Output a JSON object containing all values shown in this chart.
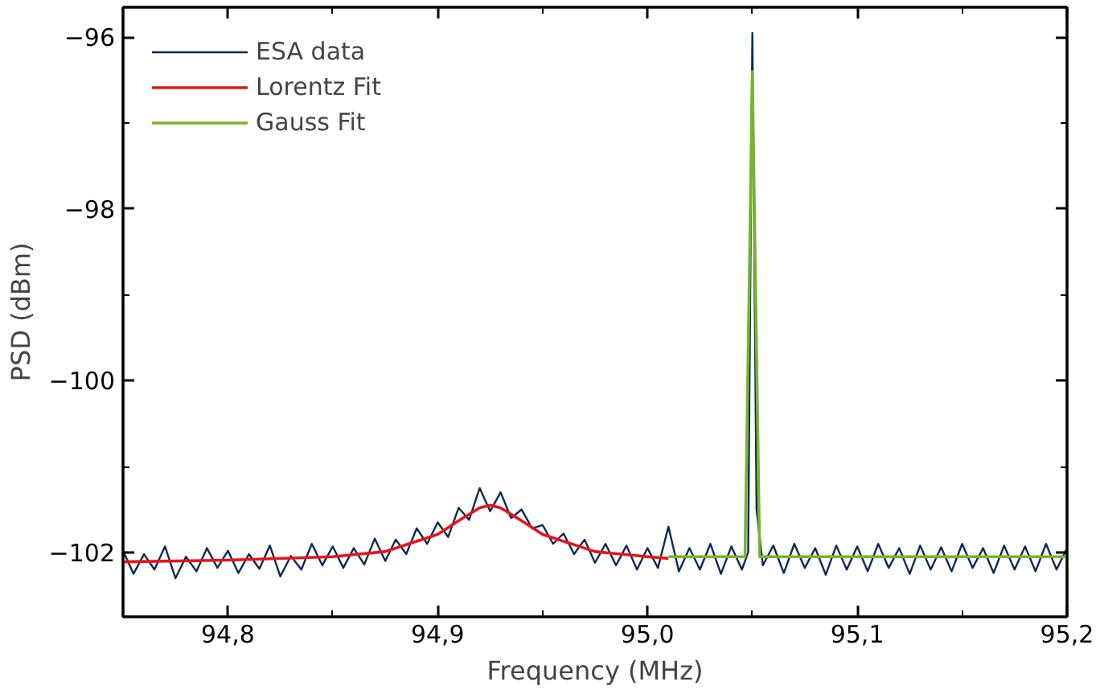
{
  "chart_data": {
    "type": "line",
    "xlabel": "Frequency (MHz)",
    "ylabel": "PSD (dBm)",
    "xlim": [
      94.75,
      95.2
    ],
    "ylim": [
      -102.75,
      -95.65
    ],
    "xticks": [
      {
        "value": 94.8,
        "label": "94,8"
      },
      {
        "value": 94.9,
        "label": "94,9"
      },
      {
        "value": 95.0,
        "label": "95,0"
      },
      {
        "value": 95.1,
        "label": "95,1"
      },
      {
        "value": 95.2,
        "label": "95,2"
      }
    ],
    "yticks": [
      -102,
      -100,
      -98,
      -96
    ],
    "grid": false,
    "legend": "top left",
    "marker": "none",
    "line_style": "solid",
    "series": [
      {
        "name": "ESA data",
        "color": "#0b2a5a",
        "x": [
          94.75,
          94.755,
          94.76,
          94.765,
          94.77,
          94.775,
          94.78,
          94.785,
          94.79,
          94.795,
          94.8,
          94.805,
          94.81,
          94.815,
          94.82,
          94.825,
          94.83,
          94.835,
          94.84,
          94.845,
          94.85,
          94.855,
          94.86,
          94.865,
          94.87,
          94.875,
          94.88,
          94.885,
          94.89,
          94.895,
          94.9,
          94.905,
          94.91,
          94.915,
          94.92,
          94.925,
          94.93,
          94.935,
          94.94,
          94.945,
          94.95,
          94.955,
          94.96,
          94.965,
          94.97,
          94.975,
          94.98,
          94.985,
          94.99,
          94.995,
          95.0,
          95.005,
          95.01,
          95.015,
          95.02,
          95.025,
          95.03,
          95.035,
          95.04,
          95.045,
          95.048,
          95.05,
          95.052,
          95.055,
          95.06,
          95.065,
          95.07,
          95.075,
          95.08,
          95.085,
          95.09,
          95.095,
          95.1,
          95.105,
          95.11,
          95.115,
          95.12,
          95.125,
          95.13,
          95.135,
          95.14,
          95.145,
          95.15,
          95.155,
          95.16,
          95.165,
          95.17,
          95.175,
          95.18,
          95.185,
          95.19,
          95.195,
          95.2
        ],
        "values": [
          -101.98,
          -102.25,
          -102.02,
          -102.2,
          -101.93,
          -102.3,
          -102.05,
          -102.22,
          -101.95,
          -102.18,
          -101.98,
          -102.24,
          -102.02,
          -102.19,
          -101.92,
          -102.28,
          -102.04,
          -102.2,
          -101.9,
          -102.15,
          -101.93,
          -102.18,
          -101.95,
          -102.14,
          -101.84,
          -102.1,
          -101.85,
          -102.02,
          -101.72,
          -101.9,
          -101.65,
          -101.82,
          -101.48,
          -101.62,
          -101.25,
          -101.52,
          -101.3,
          -101.6,
          -101.5,
          -101.72,
          -101.68,
          -101.9,
          -101.78,
          -102.02,
          -101.85,
          -102.12,
          -101.9,
          -102.15,
          -101.92,
          -102.2,
          -101.95,
          -102.18,
          -101.7,
          -102.22,
          -101.95,
          -102.2,
          -101.9,
          -102.25,
          -101.93,
          -102.2,
          -102.0,
          -95.95,
          -101.5,
          -102.15,
          -101.92,
          -102.24,
          -101.9,
          -102.18,
          -101.95,
          -102.26,
          -101.92,
          -102.2,
          -101.93,
          -102.22,
          -101.9,
          -102.18,
          -101.95,
          -102.25,
          -101.92,
          -102.2,
          -101.94,
          -102.22,
          -101.9,
          -102.18,
          -101.95,
          -102.24,
          -101.92,
          -102.2,
          -101.93,
          -102.22,
          -101.9,
          -102.2,
          -101.95
        ]
      },
      {
        "name": "Lorentz Fit",
        "color": "#e8141b",
        "x": [
          94.75,
          94.8,
          94.85,
          94.875,
          94.9,
          94.91,
          94.92,
          94.925,
          94.93,
          94.94,
          94.95,
          94.975,
          95.0,
          95.01
        ],
        "values": [
          -102.11,
          -102.09,
          -102.05,
          -101.99,
          -101.79,
          -101.63,
          -101.48,
          -101.45,
          -101.48,
          -101.63,
          -101.79,
          -101.99,
          -102.05,
          -102.07
        ]
      },
      {
        "name": "Gauss Fit",
        "color": "#7cb22b",
        "x": [
          95.01,
          95.0465,
          95.0483,
          95.05,
          95.0517,
          95.0535,
          95.2
        ],
        "values": [
          -102.05,
          -102.05,
          -99.2,
          -96.4,
          -99.2,
          -102.05,
          -102.05
        ]
      }
    ]
  }
}
